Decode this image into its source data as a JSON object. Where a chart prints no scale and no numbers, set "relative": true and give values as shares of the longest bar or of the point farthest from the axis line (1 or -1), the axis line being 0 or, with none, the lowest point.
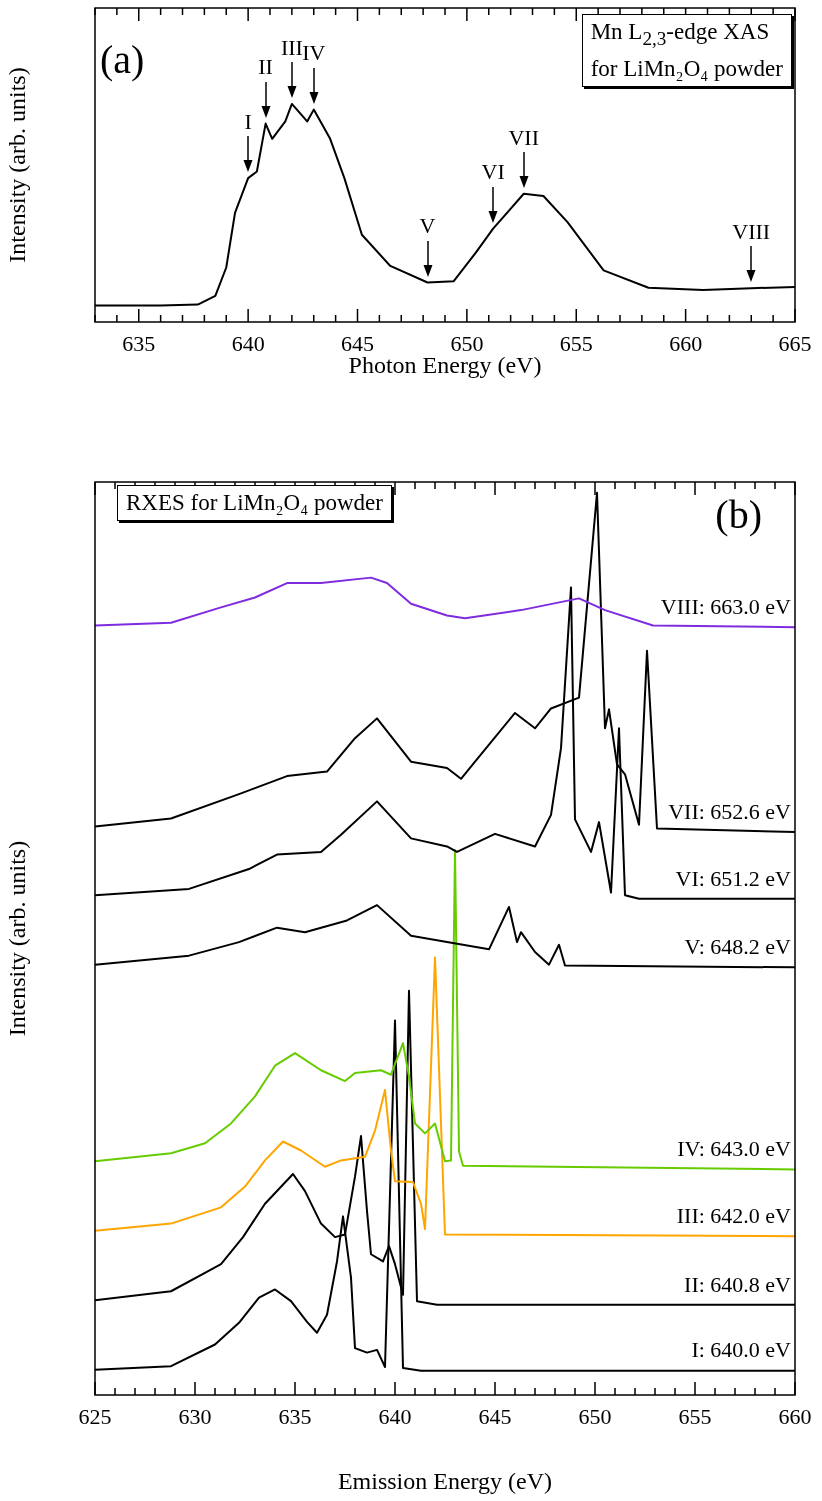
{
  "chart_data": [
    {
      "type": "line",
      "title": "(a)",
      "xlabel": "Photon Energy (eV)",
      "ylabel": "Intensity (arb. units)",
      "relative": true,
      "xlim": [
        633,
        665
      ],
      "xticks": [
        {
          "value": 633,
          "label": null
        },
        {
          "value": 634,
          "label": null
        },
        635,
        {
          "value": 636,
          "label": null
        },
        {
          "value": 637,
          "label": null
        },
        {
          "value": 638,
          "label": null
        },
        {
          "value": 639,
          "label": null
        },
        640,
        {
          "value": 641,
          "label": null
        },
        {
          "value": 642,
          "label": null
        },
        {
          "value": 643,
          "label": null
        },
        {
          "value": 644,
          "label": null
        },
        645,
        {
          "value": 646,
          "label": null
        },
        {
          "value": 647,
          "label": null
        },
        {
          "value": 648,
          "label": null
        },
        {
          "value": 649,
          "label": null
        },
        650,
        {
          "value": 651,
          "label": null
        },
        {
          "value": 652,
          "label": null
        },
        {
          "value": 653,
          "label": null
        },
        {
          "value": 654,
          "label": null
        },
        655,
        {
          "value": 656,
          "label": null
        },
        {
          "value": 657,
          "label": null
        },
        {
          "value": 658,
          "label": null
        },
        {
          "value": 659,
          "label": null
        },
        660,
        {
          "value": 661,
          "label": null
        },
        {
          "value": 662,
          "label": null
        },
        {
          "value": 663,
          "label": null
        },
        {
          "value": 664,
          "label": null
        },
        665
      ],
      "series": [
        {
          "color": "#000000",
          "x": [
            633,
            636,
            637.7,
            638.5,
            639.0,
            639.4,
            640.0,
            640.4,
            640.8,
            641.1,
            641.7,
            642.0,
            642.7,
            643.0,
            643.75,
            644.4,
            645.2,
            646.5,
            648.2,
            649.4,
            650.4,
            651.2,
            652.6,
            653.5,
            654.6,
            656.25,
            658.3,
            660.8,
            663.0,
            665
          ],
          "values": [
            0.076,
            0.076,
            0.08,
            0.12,
            0.25,
            0.5,
            0.66,
            0.69,
            0.91,
            0.84,
            0.92,
            1.0,
            0.92,
            0.974,
            0.84,
            0.66,
            0.4,
            0.257,
            0.181,
            0.187,
            0.317,
            0.428,
            0.588,
            0.578,
            0.458,
            0.237,
            0.157,
            0.147,
            0.155,
            0.161
          ]
        }
      ],
      "annotations": [
        "Mn L$_{2,3}$-edge XAS\nfor LiMn₂O₄ powder",
        {
          "text": "I",
          "x": 640.0,
          "y": 0.66
        },
        {
          "text": "II",
          "x": 640.8,
          "y": 0.91
        },
        {
          "text": "III",
          "x": 642.0,
          "y": 1.0
        },
        {
          "text": "IV",
          "x": 643.0,
          "y": 0.974
        },
        {
          "text": "V",
          "x": 648.2,
          "y": 0.181
        },
        {
          "text": "VI",
          "x": 651.2,
          "y": 0.428
        },
        {
          "text": "VII",
          "x": 652.6,
          "y": 0.588
        },
        {
          "text": "VIII",
          "x": 663.0,
          "y": 0.155
        }
      ]
    },
    {
      "type": "line",
      "title": "(b)",
      "xlabel": "Emission Energy (eV)",
      "ylabel": "Intensity (arb. units)",
      "relative": true,
      "xlim": [
        625,
        660
      ],
      "xticks": [
        625,
        {
          "value": 626,
          "label": null
        },
        {
          "value": 627,
          "label": null
        },
        {
          "value": 628,
          "label": null
        },
        {
          "value": 629,
          "label": null
        },
        630,
        {
          "value": 631,
          "label": null
        },
        {
          "value": 632,
          "label": null
        },
        {
          "value": 633,
          "label": null
        },
        {
          "value": 634,
          "label": null
        },
        635,
        {
          "value": 636,
          "label": null
        },
        {
          "value": 637,
          "label": null
        },
        {
          "value": 638,
          "label": null
        },
        {
          "value": 639,
          "label": null
        },
        640,
        {
          "value": 641,
          "label": null
        },
        {
          "value": 642,
          "label": null
        },
        {
          "value": 643,
          "label": null
        },
        {
          "value": 644,
          "label": null
        },
        645,
        {
          "value": 646,
          "label": null
        },
        {
          "value": 647,
          "label": null
        },
        {
          "value": 648,
          "label": null
        },
        {
          "value": 649,
          "label": null
        },
        650,
        {
          "value": 651,
          "label": null
        },
        {
          "value": 652,
          "label": null
        },
        {
          "value": 653,
          "label": null
        },
        {
          "value": 654,
          "label": null
        },
        655,
        {
          "value": 656,
          "label": null
        },
        {
          "value": 657,
          "label": null
        },
        {
          "value": 658,
          "label": null
        },
        {
          "value": 659,
          "label": null
        },
        660
      ],
      "series": [
        {
          "name": "VIII: 663.0 eV",
          "color": "#7f2be0",
          "x": [
            625,
            628.8,
            631.3,
            633.0,
            634.6,
            636.3,
            638.8,
            639.6,
            640.8,
            642.6,
            643.5,
            646.3,
            649.2,
            650.5,
            652.9,
            660
          ],
          "values": [
            0.853,
            0.856,
            0.873,
            0.884,
            0.9,
            0.9,
            0.906,
            0.9,
            0.877,
            0.864,
            0.861,
            0.87,
            0.883,
            0.87,
            0.853,
            0.851
          ]
        },
        {
          "name": "VII: 652.6 eV",
          "color": "#000000",
          "x": [
            625,
            628.8,
            632.2,
            634.6,
            636.6,
            638.0,
            639.1,
            640.8,
            642.6,
            643.3,
            644.7,
            646.0,
            647.0,
            647.8,
            649.2,
            650.1,
            650.5,
            650.7,
            651.1,
            651.5,
            652.2,
            652.6,
            653.1,
            660
          ],
          "values": [
            0.63,
            0.639,
            0.666,
            0.686,
            0.691,
            0.728,
            0.75,
            0.702,
            0.695,
            0.683,
            0.721,
            0.756,
            0.739,
            0.761,
            0.773,
            1.0,
            0.739,
            0.76,
            0.699,
            0.688,
            0.632,
            0.825,
            0.628,
            0.624
          ]
        },
        {
          "name": "VI: 651.2 eV",
          "color": "#000000",
          "x": [
            625,
            629.7,
            632.7,
            634.1,
            636.3,
            637.3,
            639.1,
            640.8,
            642.6,
            643.1,
            645.0,
            647.0,
            647.8,
            648.3,
            648.8,
            649.0,
            649.8,
            650.2,
            650.8,
            651.2,
            651.5,
            652.2,
            660
          ],
          "values": [
            0.554,
            0.561,
            0.583,
            0.599,
            0.602,
            0.621,
            0.658,
            0.617,
            0.608,
            0.602,
            0.622,
            0.608,
            0.643,
            0.717,
            0.895,
            0.638,
            0.602,
            0.635,
            0.557,
            0.739,
            0.554,
            0.55,
            0.55
          ]
        },
        {
          "name": "V: 648.2 eV",
          "color": "#000000",
          "x": [
            625,
            629.7,
            632.2,
            634.1,
            635.5,
            637.6,
            639.1,
            640.8,
            642.6,
            644.7,
            645.7,
            646.1,
            646.3,
            647.0,
            647.7,
            648.2,
            648.5,
            660
          ],
          "values": [
            0.477,
            0.487,
            0.502,
            0.518,
            0.513,
            0.526,
            0.543,
            0.509,
            0.502,
            0.494,
            0.541,
            0.502,
            0.513,
            0.491,
            0.477,
            0.499,
            0.476,
            0.474
          ]
        },
        {
          "name": "IV: 643.0 eV",
          "color": "#66cc00",
          "x": [
            625,
            628.8,
            630.5,
            631.8,
            633.0,
            634.0,
            635.0,
            636.3,
            637.5,
            638.0,
            639.3,
            639.8,
            640.4,
            640.7,
            641.0,
            641.5,
            642.0,
            642.5,
            642.8,
            643.0,
            643.2,
            643.4,
            660
          ],
          "values": [
            0.259,
            0.268,
            0.279,
            0.301,
            0.331,
            0.365,
            0.379,
            0.36,
            0.348,
            0.357,
            0.36,
            0.355,
            0.39,
            0.353,
            0.301,
            0.29,
            0.301,
            0.259,
            0.26,
            0.604,
            0.27,
            0.254,
            0.25
          ]
        },
        {
          "name": "III: 642.0 eV",
          "color": "#ffa500",
          "x": [
            625,
            628.8,
            631.3,
            632.5,
            633.5,
            634.4,
            635.3,
            636.5,
            637.3,
            638.5,
            639.0,
            639.5,
            639.8,
            640.0,
            640.9,
            641.3,
            641.5,
            642.0,
            642.5,
            660
          ],
          "values": [
            0.182,
            0.19,
            0.208,
            0.231,
            0.26,
            0.281,
            0.271,
            0.253,
            0.26,
            0.264,
            0.293,
            0.338,
            0.271,
            0.237,
            0.236,
            0.212,
            0.184,
            0.485,
            0.178,
            0.176
          ]
        },
        {
          "name": "II: 640.8 eV",
          "color": "#000000",
          "x": [
            625,
            628.8,
            631.3,
            632.4,
            633.5,
            634.9,
            635.5,
            636.3,
            637.0,
            637.5,
            638.0,
            638.3,
            638.6,
            638.8,
            639.4,
            639.7,
            640.0,
            640.4,
            640.7,
            641.1,
            642.1,
            660
          ],
          "values": [
            0.105,
            0.115,
            0.145,
            0.175,
            0.212,
            0.245,
            0.226,
            0.19,
            0.175,
            0.178,
            0.242,
            0.287,
            0.204,
            0.156,
            0.148,
            0.165,
            0.145,
            0.111,
            0.448,
            0.104,
            0.1,
            0.1
          ]
        },
        {
          "name": "I: 640.0 eV",
          "color": "#000000",
          "x": [
            625,
            628.8,
            631.0,
            632.2,
            633.2,
            634.0,
            634.8,
            635.6,
            636.1,
            636.6,
            637.1,
            637.4,
            637.8,
            638.0,
            638.6,
            639.1,
            639.5,
            640.0,
            640.4,
            641.3,
            660
          ],
          "values": [
            0.028,
            0.032,
            0.056,
            0.08,
            0.108,
            0.117,
            0.104,
            0.081,
            0.069,
            0.089,
            0.148,
            0.198,
            0.13,
            0.052,
            0.047,
            0.05,
            0.031,
            0.415,
            0.03,
            0.027,
            0.027
          ]
        }
      ],
      "annotations": [
        "RXES for LiMn₂O₄ powder"
      ]
    }
  ]
}
